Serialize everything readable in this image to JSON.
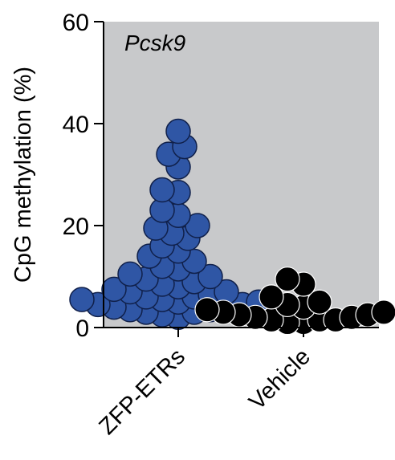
{
  "chart_data": {
    "type": "scatter",
    "panel_label": "Pcsk9",
    "ylabel": "CpG methylation (%)",
    "xlabel": "",
    "ylim": [
      0,
      60
    ],
    "yticks": [
      "0",
      "20",
      "40",
      "60"
    ],
    "categories": [
      "ZFP-ETRs",
      "Vehicle"
    ],
    "background_color": "#c8c9cb",
    "grid": false,
    "series": [
      {
        "category": "ZFP-ETRs",
        "color": "#2f56a5",
        "values": [
          38.5,
          35.5,
          34,
          31.5,
          27,
          26.5,
          23,
          22,
          20,
          19.5,
          18.5,
          17.5,
          16,
          15,
          14,
          13,
          12,
          11.5,
          10.5,
          10,
          9.5,
          9,
          8.5,
          8,
          7.5,
          7,
          7,
          6.5,
          6,
          6,
          5.5,
          5.5,
          5,
          5,
          4.5,
          4.5,
          4,
          4,
          3.5,
          3.5,
          3,
          3,
          2.5,
          2
        ]
      },
      {
        "category": "Vehicle",
        "color": "#000000",
        "values": [
          9.5,
          8.5,
          6,
          5,
          4.5,
          4,
          3.5,
          3,
          3,
          2.5,
          2.5,
          2,
          2,
          1.5,
          1.5,
          1.5,
          1,
          1
        ]
      }
    ]
  }
}
